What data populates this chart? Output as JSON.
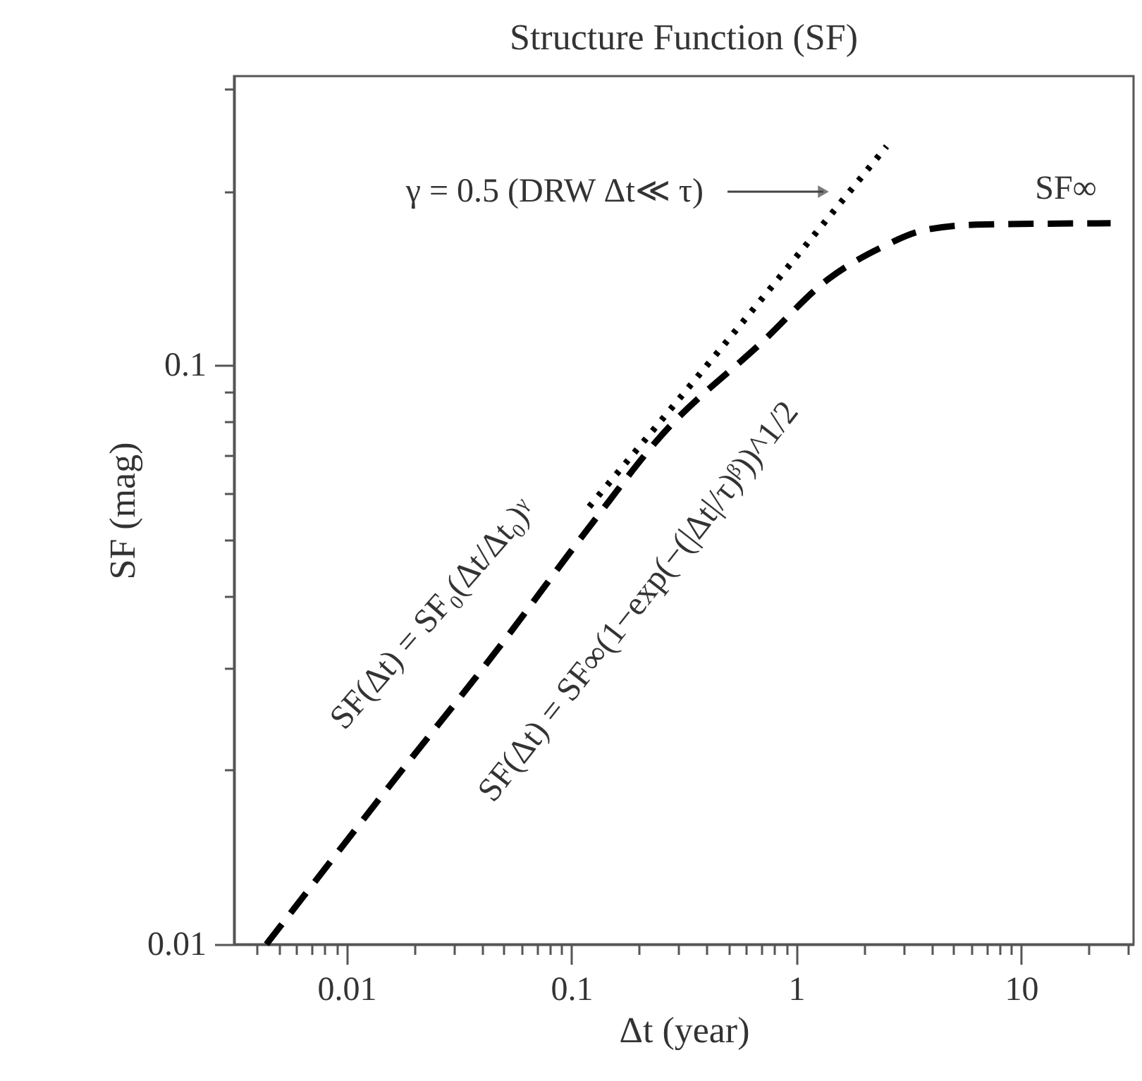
{
  "chart_data": {
    "type": "line",
    "title": "Structure Function (SF)",
    "xlabel": "Δt (year)",
    "ylabel": "SF (mag)",
    "log": "xy",
    "grid": false,
    "xlim": [
      0.00316,
      31.6
    ],
    "ylim": [
      0.01,
      0.316
    ],
    "xticks": [
      {
        "value": 0.004,
        "label": null
      },
      {
        "value": 0.005,
        "label": null
      },
      {
        "value": 0.006,
        "label": null
      },
      {
        "value": 0.007,
        "label": null
      },
      {
        "value": 0.008,
        "label": null
      },
      {
        "value": 0.009,
        "label": null
      },
      0.01,
      {
        "value": 0.02,
        "label": null
      },
      {
        "value": 0.03,
        "label": null
      },
      {
        "value": 0.04,
        "label": null
      },
      {
        "value": 0.05,
        "label": null
      },
      {
        "value": 0.06,
        "label": null
      },
      {
        "value": 0.07,
        "label": null
      },
      {
        "value": 0.08,
        "label": null
      },
      {
        "value": 0.09,
        "label": null
      },
      0.1,
      {
        "value": 0.2,
        "label": null
      },
      {
        "value": 0.3,
        "label": null
      },
      {
        "value": 0.4,
        "label": null
      },
      {
        "value": 0.5,
        "label": null
      },
      {
        "value": 0.6,
        "label": null
      },
      {
        "value": 0.7,
        "label": null
      },
      {
        "value": 0.8,
        "label": null
      },
      {
        "value": 0.9,
        "label": null
      },
      1,
      {
        "value": 2,
        "label": null
      },
      {
        "value": 3,
        "label": null
      },
      {
        "value": 4,
        "label": null
      },
      {
        "value": 5,
        "label": null
      },
      {
        "value": 6,
        "label": null
      },
      {
        "value": 7,
        "label": null
      },
      {
        "value": 8,
        "label": null
      },
      {
        "value": 9,
        "label": null
      },
      10,
      {
        "value": 20,
        "label": null
      },
      {
        "value": 30,
        "label": null
      }
    ],
    "yticks": [
      0.01,
      {
        "value": 0.02,
        "label": null
      },
      {
        "value": 0.03,
        "label": null
      },
      {
        "value": 0.04,
        "label": null
      },
      {
        "value": 0.05,
        "label": null
      },
      {
        "value": 0.06,
        "label": null
      },
      {
        "value": 0.07,
        "label": null
      },
      {
        "value": 0.08,
        "label": null
      },
      {
        "value": 0.09,
        "label": null
      },
      0.1,
      {
        "value": 0.2,
        "label": null
      },
      {
        "value": 0.3,
        "label": null
      }
    ],
    "series": [
      {
        "color": "#000000",
        "line_style": "dashed",
        "x": [
          0.0044,
          0.0154,
          0.046,
          0.122,
          0.25,
          0.71,
          1.39,
          2.4,
          3.66,
          6.3,
          25
        ],
        "values": [
          0.01,
          0.0187,
          0.032,
          0.053,
          0.0755,
          0.11,
          0.141,
          0.16,
          0.171,
          0.175,
          0.176
        ]
      },
      {
        "color": "#000000",
        "line_style": "dotted",
        "x": [
          0.12,
          0.5,
          1,
          2.52
        ],
        "values": [
          0.057,
          0.111,
          0.154,
          0.239
        ]
      }
    ],
    "annotations": [
      "γ = 0.5 (DRW Δt≪ τ)",
      "SF∞",
      "SF(Δt) = SF₀(Δt/Δt₀)ᵞ",
      "SF(Δt) = SF∞(1−exp(−(|Δt|/τ)ᵝ))^1/2"
    ]
  }
}
